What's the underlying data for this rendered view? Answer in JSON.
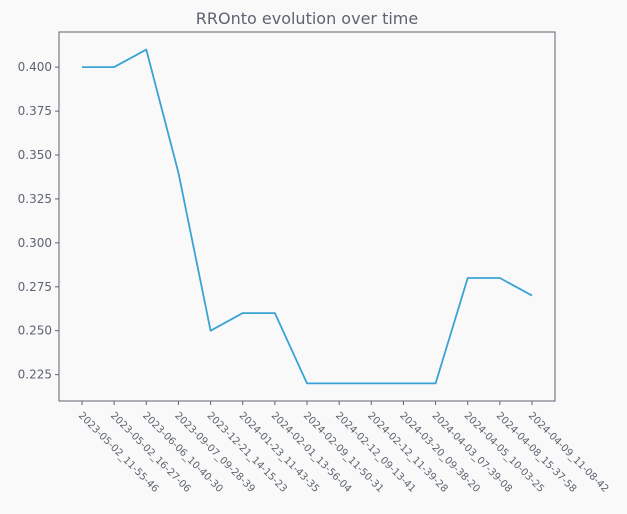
{
  "chart_data": {
    "type": "line",
    "title": "RROnto evolution over time",
    "xlabel": "",
    "ylabel": "",
    "x": [
      "2023-05-02_11-55-46",
      "2023-05-02_16-27-06",
      "2023-06-06_10-40-30",
      "2023-09-07_09-28-39",
      "2023-12-21_14-15-23",
      "2024-01-23_11-43-35",
      "2024-02-01_13-56-04",
      "2024-02-09_11-50-31",
      "2024-02-12_09-13-41",
      "2024-02-12_11-39-28",
      "2024-03-20_09-38-20",
      "2024-04-03_07-39-08",
      "2024-04-05_10-03-25",
      "2024-04-08_15-37-58",
      "2024-04-09_11-08-42"
    ],
    "series": [
      {
        "values": [
          0.4,
          0.4,
          0.41,
          0.34,
          0.25,
          0.26,
          0.26,
          0.22,
          0.22,
          0.22,
          0.22,
          0.22,
          0.28,
          0.28,
          0.27
        ],
        "color": "#3aa3d6"
      }
    ],
    "yticks": [
      "0.225",
      "0.250",
      "0.275",
      "0.300",
      "0.325",
      "0.350",
      "0.375",
      "0.400"
    ],
    "ylim": [
      0.21,
      0.42
    ],
    "grid": false,
    "legend": "none",
    "colors": {
      "background": "#f9f9f9",
      "axis": "#5d6470",
      "text": "#5d6470",
      "line": "#3aa3d6"
    }
  }
}
